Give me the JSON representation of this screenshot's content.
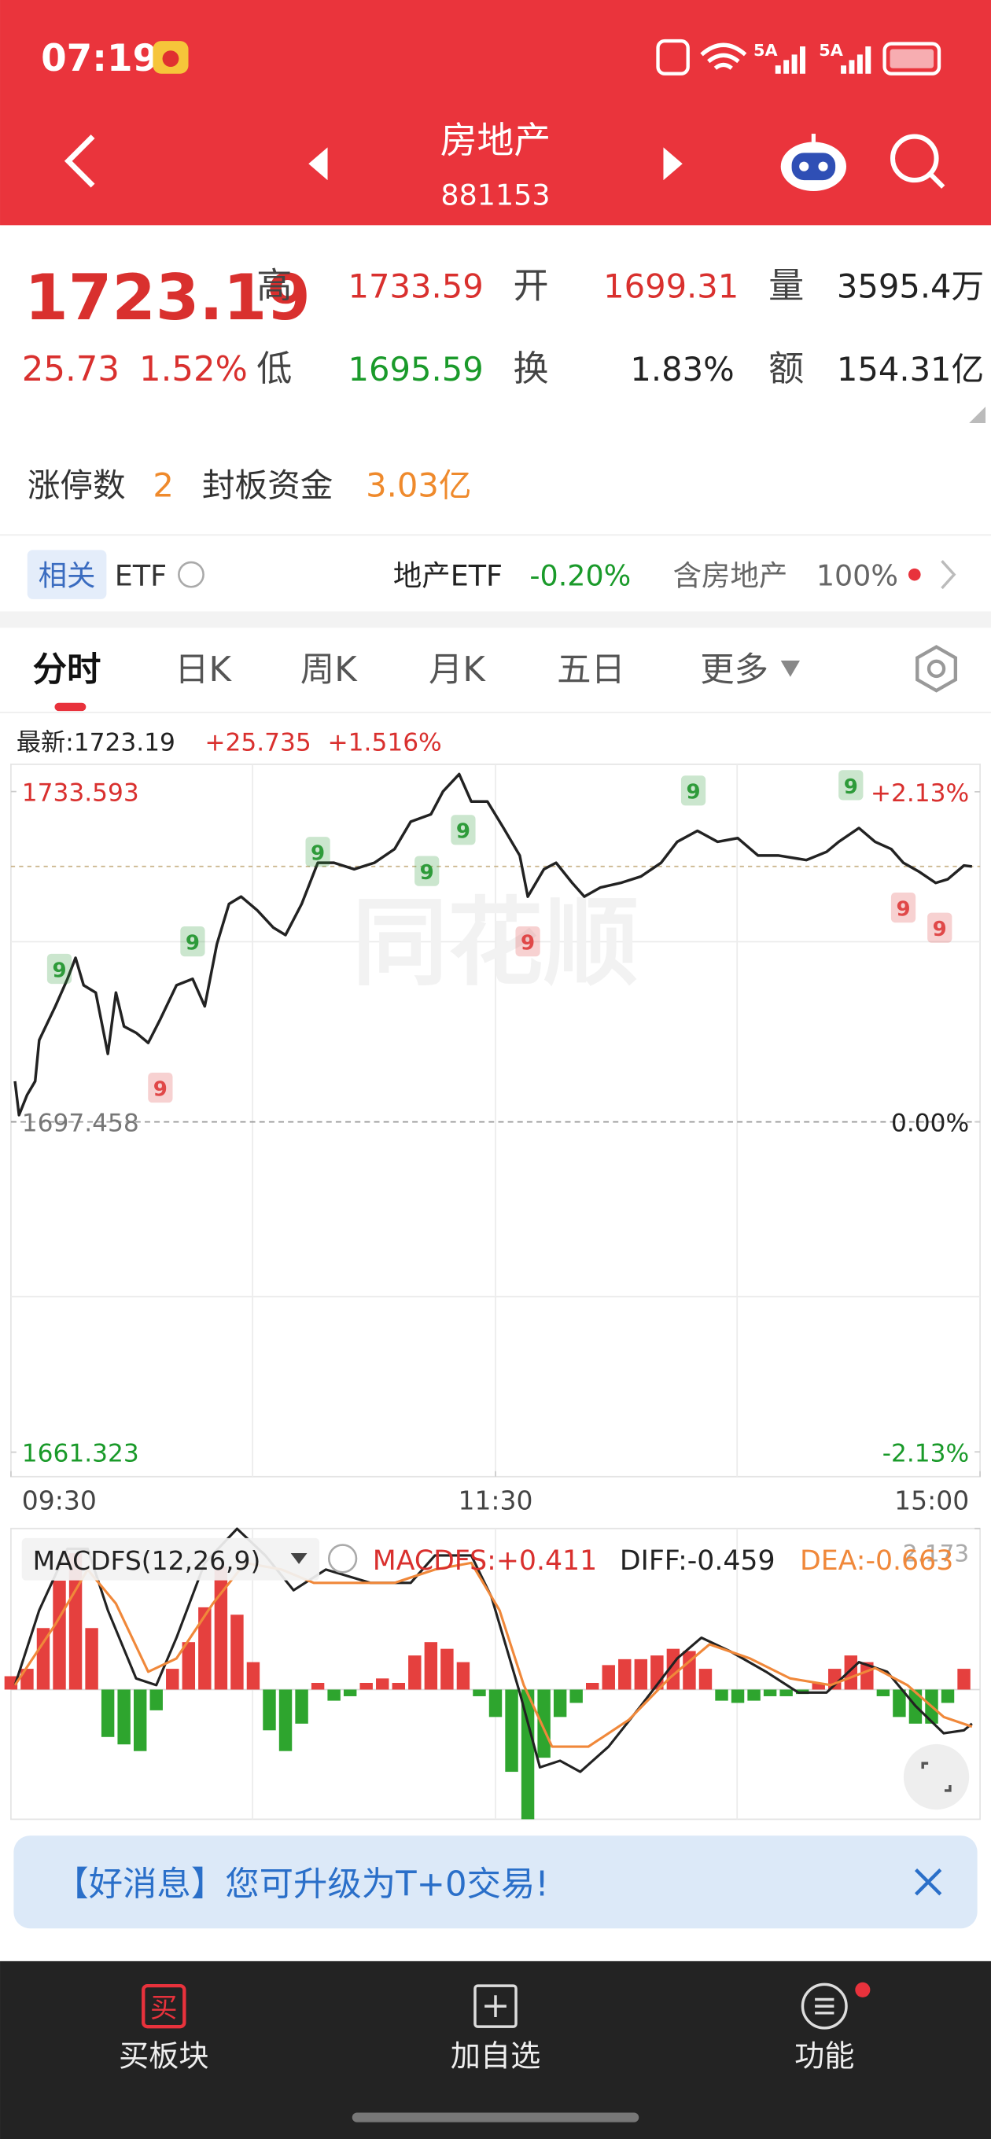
{
  "status_bar": {
    "time": "07:19",
    "net1": "5A",
    "net2": "5A"
  },
  "nav": {
    "title": "房地产",
    "code": "881153"
  },
  "quote": {
    "price": "1723.19",
    "change": "25.73",
    "change_pct": "1.52%",
    "high_label": "高",
    "high": "1733.59",
    "open_label": "开",
    "open": "1699.31",
    "volume_label": "量",
    "volume": "3595.4万",
    "low_label": "低",
    "low": "1695.59",
    "turnover_label": "换",
    "turnover": "1.83%",
    "amount_label": "额",
    "amount": "154.31亿"
  },
  "limit": {
    "count_label": "涨停数",
    "count": "2",
    "fund_label": "封板资金",
    "fund": "3.03亿"
  },
  "related": {
    "tag": "相关",
    "etf": "ETF",
    "etf_name": "地产ETF",
    "etf_change": "-0.20%",
    "holding": "含房地产",
    "holding_pct": "100%"
  },
  "tabs": [
    "分时",
    "日K",
    "周K",
    "月K",
    "五日",
    "更多"
  ],
  "chart_header": {
    "latest": "最新:1723.19",
    "change": "+25.735",
    "change_pct": "+1.516%"
  },
  "watermark": "同花顺",
  "macd_header": {
    "name": "MACDFS(12,26,9)",
    "macdfs": "MACDFS:+0.411",
    "diff": "DIFF:-0.459",
    "dea": "DEA:-0.663"
  },
  "chart_data": [
    {
      "type": "line",
      "color": "#222222",
      "xlim": [
        0,
        240
      ],
      "xticks": [
        {
          "value": 0,
          "label": "09:30"
        },
        {
          "value": 120,
          "label": "11:30"
        },
        {
          "value": 240,
          "label": "15:00"
        }
      ],
      "ylim": [
        1658.64,
        1736.28
      ],
      "yticks": [
        1733.593,
        1697.458,
        1661.323
      ],
      "y2lim": [
        -2.29,
        2.29
      ],
      "y2ticks": [
        {
          "value": 2.13,
          "label": "+2.13%"
        },
        {
          "value": 0,
          "label": "0.00%"
        },
        {
          "value": -2.13,
          "label": "-2.13%"
        }
      ],
      "x": [
        1,
        2,
        4,
        6,
        7,
        11,
        14,
        16,
        18,
        21,
        24,
        26,
        28,
        31,
        34,
        37,
        41,
        45,
        48,
        51,
        54,
        57,
        61,
        65,
        68,
        72,
        76,
        80,
        85,
        90,
        95,
        99,
        104,
        107,
        111,
        114,
        118,
        122,
        126,
        128,
        132,
        135,
        139,
        142,
        146,
        151,
        156,
        161,
        165,
        170,
        175,
        180,
        185,
        190,
        197,
        202,
        205,
        210,
        214,
        218,
        221,
        225,
        229,
        232,
        236,
        238
      ],
      "values": [
        1701.9,
        1698.2,
        1700.4,
        1701.9,
        1706.4,
        1710.1,
        1713.1,
        1715.4,
        1712.4,
        1711.6,
        1704.9,
        1711.6,
        1707.9,
        1707.2,
        1706.1,
        1708.7,
        1712.4,
        1713.1,
        1710.1,
        1716.9,
        1721.3,
        1722.1,
        1720.6,
        1718.7,
        1717.9,
        1721.3,
        1725.8,
        1725.8,
        1725.1,
        1725.8,
        1727.3,
        1730.3,
        1731.1,
        1733.6,
        1735.5,
        1732.5,
        1732.5,
        1729.6,
        1726.6,
        1722.1,
        1725.1,
        1725.8,
        1723.6,
        1722.1,
        1723.1,
        1723.6,
        1724.3,
        1725.8,
        1728.1,
        1729.3,
        1728.1,
        1728.5,
        1726.6,
        1726.6,
        1726.1,
        1727.0,
        1728.1,
        1729.6,
        1728.1,
        1727.3,
        1725.8,
        1724.8,
        1723.6,
        1724.0,
        1725.5,
        1725.4
      ],
      "signals": [
        {
          "x": 12,
          "y": 1714.2,
          "label": "9",
          "color": "#2e9b3a"
        },
        {
          "x": 45,
          "y": 1717.2,
          "label": "9",
          "color": "#2e9b3a"
        },
        {
          "x": 76,
          "y": 1727.0,
          "label": "9",
          "color": "#2e9b3a"
        },
        {
          "x": 103,
          "y": 1724.9,
          "label": "9",
          "color": "#2e9b3a"
        },
        {
          "x": 112,
          "y": 1729.4,
          "label": "9",
          "color": "#2e9b3a"
        },
        {
          "x": 169,
          "y": 1733.7,
          "label": "9",
          "color": "#2e9b3a"
        },
        {
          "x": 208,
          "y": 1734.3,
          "label": "9",
          "color": "#2e9b3a"
        },
        {
          "x": 37,
          "y": 1701.2,
          "label": "9",
          "color": "#e04848"
        },
        {
          "x": 128,
          "y": 1717.2,
          "label": "9",
          "color": "#e04848"
        },
        {
          "x": 221,
          "y": 1720.9,
          "label": "9",
          "color": "#e04848"
        },
        {
          "x": 230,
          "y": 1718.7,
          "label": "9",
          "color": "#e04848"
        }
      ]
    },
    {
      "type": "macd",
      "xlim": [
        0,
        240
      ],
      "ylim": [
        -1.75,
        2.173
      ],
      "yticks": [
        2.173
      ],
      "up_color": "#e5403e",
      "down_color": "#2ea52e",
      "x": [
        0,
        4,
        8,
        12,
        16,
        20,
        24,
        28,
        32,
        36,
        40,
        44,
        48,
        52,
        56,
        60,
        64,
        68,
        72,
        76,
        80,
        84,
        88,
        92,
        96,
        100,
        104,
        108,
        112,
        116,
        120,
        124,
        128,
        132,
        136,
        140,
        144,
        148,
        152,
        156,
        160,
        164,
        168,
        172,
        176,
        180,
        184,
        188,
        192,
        196,
        200,
        204,
        208,
        212,
        216,
        220,
        224,
        228,
        232,
        236
      ],
      "values": [
        0.18,
        0.28,
        0.83,
        1.47,
        1.84,
        0.83,
        -0.64,
        -0.74,
        -0.83,
        -0.28,
        0.28,
        0.64,
        1.11,
        1.66,
        1.01,
        0.37,
        -0.55,
        -0.83,
        -0.46,
        0.09,
        -0.15,
        -0.09,
        0.09,
        0.15,
        0.09,
        0.46,
        0.64,
        0.55,
        0.37,
        -0.09,
        -0.37,
        -1.11,
        -1.75,
        -0.92,
        -0.37,
        -0.18,
        0.09,
        0.33,
        0.41,
        0.41,
        0.46,
        0.55,
        0.52,
        0.28,
        -0.15,
        -0.18,
        -0.15,
        -0.09,
        -0.09,
        -0.06,
        0.09,
        0.28,
        0.46,
        0.37,
        -0.09,
        -0.37,
        -0.46,
        -0.46,
        -0.18,
        0.28
      ],
      "series": [
        {
          "color": "#222222",
          "x": [
            1,
            7,
            14,
            19,
            24,
            31,
            36,
            41,
            48,
            56,
            63,
            70,
            78,
            89,
            99,
            105,
            114,
            119,
            126,
            131,
            136,
            141,
            148,
            156,
            165,
            171,
            178,
            187,
            195,
            202,
            210,
            217,
            224,
            231,
            236,
            238
          ],
          "values": [
            0.06,
            1.07,
            1.9,
            1.9,
            1.07,
            0.15,
            0.06,
            0.7,
            1.71,
            2.17,
            1.81,
            1.34,
            1.62,
            1.44,
            1.44,
            1.81,
            1.81,
            1.25,
            -0.04,
            -1.05,
            -0.96,
            -1.11,
            -0.77,
            -0.22,
            0.42,
            0.7,
            0.52,
            0.24,
            -0.04,
            -0.04,
            0.37,
            0.24,
            -0.22,
            -0.59,
            -0.55,
            -0.46
          ]
        },
        {
          "color": "#f0883a",
          "x": [
            1,
            11,
            19,
            26,
            34,
            41,
            50,
            58,
            67,
            75,
            85,
            95,
            105,
            114,
            121,
            127,
            134,
            143,
            153,
            163,
            173,
            183,
            193,
            203,
            214,
            222,
            231,
            238
          ],
          "values": [
            0.06,
            0.88,
            1.62,
            1.16,
            0.24,
            0.42,
            1.16,
            1.71,
            1.62,
            1.44,
            1.44,
            1.44,
            1.62,
            1.71,
            1.07,
            0.06,
            -0.77,
            -0.77,
            -0.41,
            0.15,
            0.61,
            0.42,
            0.15,
            0.06,
            0.29,
            0.06,
            -0.37,
            -0.5
          ]
        }
      ]
    }
  ],
  "banner": {
    "text": "【好消息】您可升级为T+0交易!"
  },
  "bottom_nav": [
    {
      "icon": "买",
      "label": "买板块"
    },
    {
      "label": "加自选"
    },
    {
      "label": "功能"
    }
  ]
}
